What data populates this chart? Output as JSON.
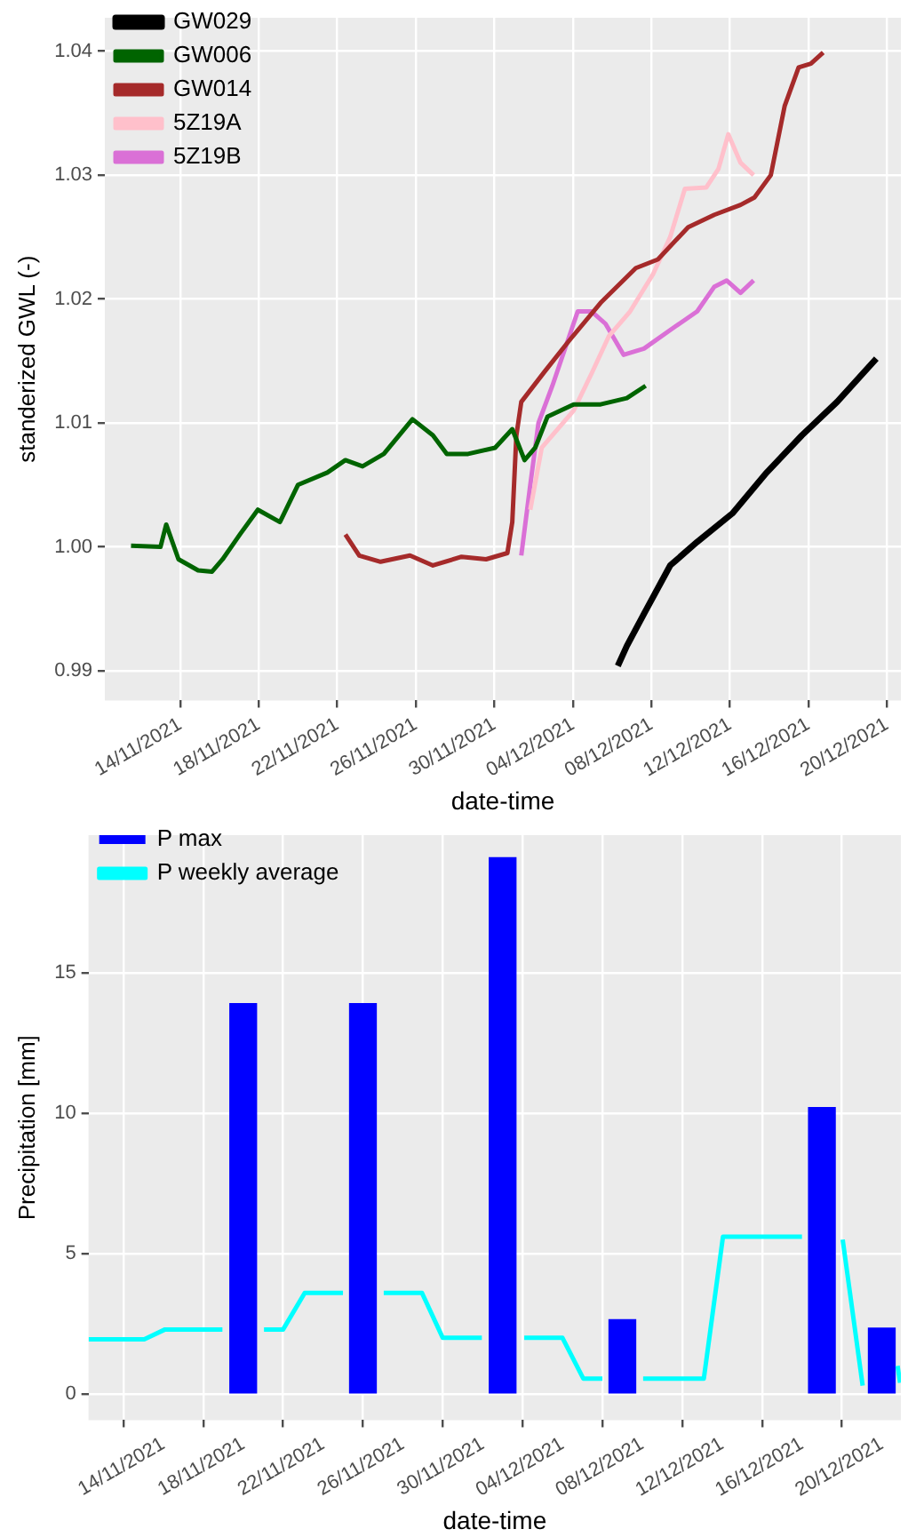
{
  "chart_data": [
    {
      "type": "line",
      "ylabel": "standerized GWL (-)",
      "xlabel": "date-time",
      "xlim": [
        "2021-11-10T04:00",
        "2021-12-20T17:00"
      ],
      "xticks": [
        {
          "value": "2021-11-14",
          "label": "14/11/2021"
        },
        {
          "value": "2021-11-18",
          "label": "18/11/2021"
        },
        {
          "value": "2021-11-22",
          "label": "22/11/2021"
        },
        {
          "value": "2021-11-26",
          "label": "26/11/2021"
        },
        {
          "value": "2021-11-30",
          "label": "30/11/2021"
        },
        {
          "value": "2021-12-04",
          "label": "04/12/2021"
        },
        {
          "value": "2021-12-08",
          "label": "08/12/2021"
        },
        {
          "value": "2021-12-12",
          "label": "12/12/2021"
        },
        {
          "value": "2021-12-16",
          "label": "16/12/2021"
        },
        {
          "value": "2021-12-20",
          "label": "20/12/2021"
        }
      ],
      "ylim": [
        0.9876,
        1.0427
      ],
      "yticks": [
        {
          "value": 0.99,
          "label": "0.99"
        },
        {
          "value": 1,
          "label": "1.00"
        },
        {
          "value": 1.01,
          "label": "1.01"
        },
        {
          "value": 1.02,
          "label": "1.02"
        },
        {
          "value": 1.03,
          "label": "1.03"
        },
        {
          "value": 1.04,
          "label": "1.04"
        }
      ],
      "grid": true,
      "legend": "top left",
      "series": [
        {
          "name": "GW029",
          "color": "#000000",
          "x": [
            "2021-12-06T07:00",
            "2021-12-06T18:00",
            "2021-12-07T15:00",
            "2021-12-08T23:00",
            "2021-12-10T08:00",
            "2021-12-12T03:00",
            "2021-12-13T21:00",
            "2021-12-15T16:00",
            "2021-12-17T11:00",
            "2021-12-19T11:00"
          ],
          "values": [
            0.9904,
            0.992,
            0.9946,
            0.9985,
            1.0004,
            1.0027,
            1.006,
            1.009,
            1.0117,
            1.0152
          ]
        },
        {
          "name": "GW006",
          "color": "#006400",
          "x": [
            "2021-11-11T12:00",
            "2021-11-13T00:00",
            "2021-11-13T07:00",
            "2021-11-13T22:00",
            "2021-11-14T22:00",
            "2021-11-15T15:00",
            "2021-11-16T04:00",
            "2021-11-17T01:00",
            "2021-11-17T23:00",
            "2021-11-19T02:00",
            "2021-11-20T00:00",
            "2021-11-21T12:00",
            "2021-11-22T10:00",
            "2021-11-23T07:00",
            "2021-11-24T09:00",
            "2021-11-25T20:00",
            "2021-11-26T21:00",
            "2021-11-27T14:00",
            "2021-11-28T16:00",
            "2021-11-30T01:00",
            "2021-11-30T22:00",
            "2021-12-01T13:00",
            "2021-12-02T02:00",
            "2021-12-02T17:00",
            "2021-12-04T01:00",
            "2021-12-05T10:00",
            "2021-12-06T18:00",
            "2021-12-07T17:00"
          ],
          "values": [
            1.0001,
            1.0,
            1.0018,
            0.999,
            0.9981,
            0.998,
            0.999,
            1.001,
            1.003,
            1.002,
            1.005,
            1.006,
            1.007,
            1.0065,
            1.0075,
            1.0103,
            1.009,
            1.0075,
            1.0075,
            1.008,
            1.0095,
            1.007,
            1.008,
            1.0105,
            1.0115,
            1.0115,
            1.012,
            1.013
          ]
        },
        {
          "name": "GW014",
          "color": "#a52a2a",
          "x": [
            "2021-11-22T10:00",
            "2021-11-23T03:00",
            "2021-11-24T05:00",
            "2021-11-25T17:00",
            "2021-11-26T21:00",
            "2021-11-28T08:00",
            "2021-11-29T14:00",
            "2021-11-30T16:00",
            "2021-11-30T22:00",
            "2021-12-01T03:00",
            "2021-12-01T09:00",
            "2021-12-02T13:00",
            "2021-12-03T19:00",
            "2021-12-05T10:00",
            "2021-12-07T05:00",
            "2021-12-08T08:00",
            "2021-12-09T21:00",
            "2021-12-11T05:00",
            "2021-12-12T13:00",
            "2021-12-13T06:00",
            "2021-12-14T02:00",
            "2021-12-14T19:00",
            "2021-12-15T12:00",
            "2021-12-16T03:00",
            "2021-12-16T18:00"
          ],
          "values": [
            1.001,
            0.9993,
            0.9988,
            0.9993,
            0.9985,
            0.9992,
            0.999,
            0.9995,
            1.002,
            1.009,
            1.0117,
            1.0141,
            1.0166,
            1.0197,
            1.0225,
            1.0232,
            1.0258,
            1.0268,
            1.0276,
            1.0282,
            1.03,
            1.0356,
            1.0387,
            1.039,
            1.0399
          ]
        },
        {
          "name": "5Z19A",
          "color": "#ffc0cb",
          "x": [
            "2021-12-01T20:00",
            "2021-12-02T10:00",
            "2021-12-04T01:00",
            "2021-12-04T23:00",
            "2021-12-05T20:00",
            "2021-12-06T22:00",
            "2021-12-08T02:00",
            "2021-12-08T23:00",
            "2021-12-09T17:00",
            "2021-12-10T19:00",
            "2021-12-11T10:00",
            "2021-12-11T22:00",
            "2021-12-12T13:00",
            "2021-12-13T05:00"
          ],
          "values": [
            1.003,
            1.008,
            1.011,
            1.014,
            1.017,
            1.019,
            1.022,
            1.025,
            1.0289,
            1.029,
            1.0305,
            1.0333,
            1.031,
            1.03
          ]
        },
        {
          "name": "5Z19B",
          "color": "#da70d6",
          "x": [
            "2021-12-01T09:00",
            "2021-12-01T20:00",
            "2021-12-02T06:00",
            "2021-12-02T23:00",
            "2021-12-04T06:00",
            "2021-12-04T23:00",
            "2021-12-05T16:00",
            "2021-12-06T14:00",
            "2021-12-07T15:00",
            "2021-12-08T23:00",
            "2021-12-10T08:00",
            "2021-12-11T05:00",
            "2021-12-11T20:00",
            "2021-12-12T13:00",
            "2021-12-13T05:00"
          ],
          "values": [
            0.9993,
            1.005,
            1.01,
            1.013,
            1.019,
            1.019,
            1.018,
            1.0155,
            1.016,
            1.0175,
            1.019,
            1.021,
            1.0215,
            1.0205,
            1.0215
          ]
        }
      ]
    },
    {
      "type": "bar",
      "ylabel": "Precipitation [mm]",
      "xlabel": "date-time",
      "xlim": [
        "2021-11-10T06:00",
        "2021-12-20T23:00"
      ],
      "xticks": [
        {
          "value": "2021-11-14",
          "label": "14/11/2021"
        },
        {
          "value": "2021-11-18",
          "label": "18/11/2021"
        },
        {
          "value": "2021-11-22",
          "label": "22/11/2021"
        },
        {
          "value": "2021-11-26",
          "label": "26/11/2021"
        },
        {
          "value": "2021-11-30",
          "label": "30/11/2021"
        },
        {
          "value": "2021-12-04",
          "label": "04/12/2021"
        },
        {
          "value": "2021-12-08",
          "label": "08/12/2021"
        },
        {
          "value": "2021-12-12",
          "label": "12/12/2021"
        },
        {
          "value": "2021-12-16",
          "label": "16/12/2021"
        },
        {
          "value": "2021-12-20",
          "label": "20/12/2021"
        }
      ],
      "ylim": [
        -0.93,
        19.9
      ],
      "yticks": [
        0,
        5,
        10,
        15
      ],
      "grid": true,
      "legend": "top left",
      "series": [
        {
          "name": "P max",
          "type": "bar",
          "color": "#0000ff",
          "x": [
            "2021-11-18",
            "2021-11-24",
            "2021-12-01",
            "2021-12-07",
            "2021-12-17",
            "2021-12-20"
          ],
          "values": [
            13.9,
            13.9,
            19.1,
            2.65,
            10.2,
            2.35
          ]
        },
        {
          "name": "P weekly average",
          "type": "line",
          "color": "#00ffff",
          "x": [
            "2021-11-10T06:00",
            "2021-11-13T01:00",
            "2021-11-14T02:00",
            "2021-11-16T23:00",
            "2021-11-18T00:00",
            "2021-11-19T01:00",
            "2021-11-20T00:00",
            "2021-11-21T02:00",
            "2021-11-23T00:00",
            "2021-11-24T00:00",
            "2021-11-25T01:00",
            "2021-11-26T23:00",
            "2021-11-28T00:00",
            "2021-11-29T23:00",
            "2021-12-01T00:00",
            "2021-12-02T02:00",
            "2021-12-04T00:00",
            "2021-12-05T01:00",
            "2021-12-06T00:00",
            "2021-12-07T00:00",
            "2021-12-08T01:00",
            "2021-12-11T02:00",
            "2021-12-12T01:00",
            "2021-12-16T00:00",
            "2021-12-17T00:00",
            "2021-12-18T01:00",
            "2021-12-19T01:00",
            "2021-12-20T00:00",
            "2021-12-20T19:00",
            "2021-12-20T22:00"
          ],
          "values": [
            1.95,
            1.95,
            2.3,
            2.3,
            null,
            2.3,
            2.3,
            3.6,
            3.6,
            null,
            3.6,
            3.6,
            2.0,
            2.0,
            null,
            2.0,
            2.0,
            0.55,
            0.55,
            null,
            0.55,
            0.55,
            5.6,
            5.6,
            null,
            5.5,
            0.3,
            null,
            1.0,
            0.4
          ]
        }
      ]
    }
  ]
}
